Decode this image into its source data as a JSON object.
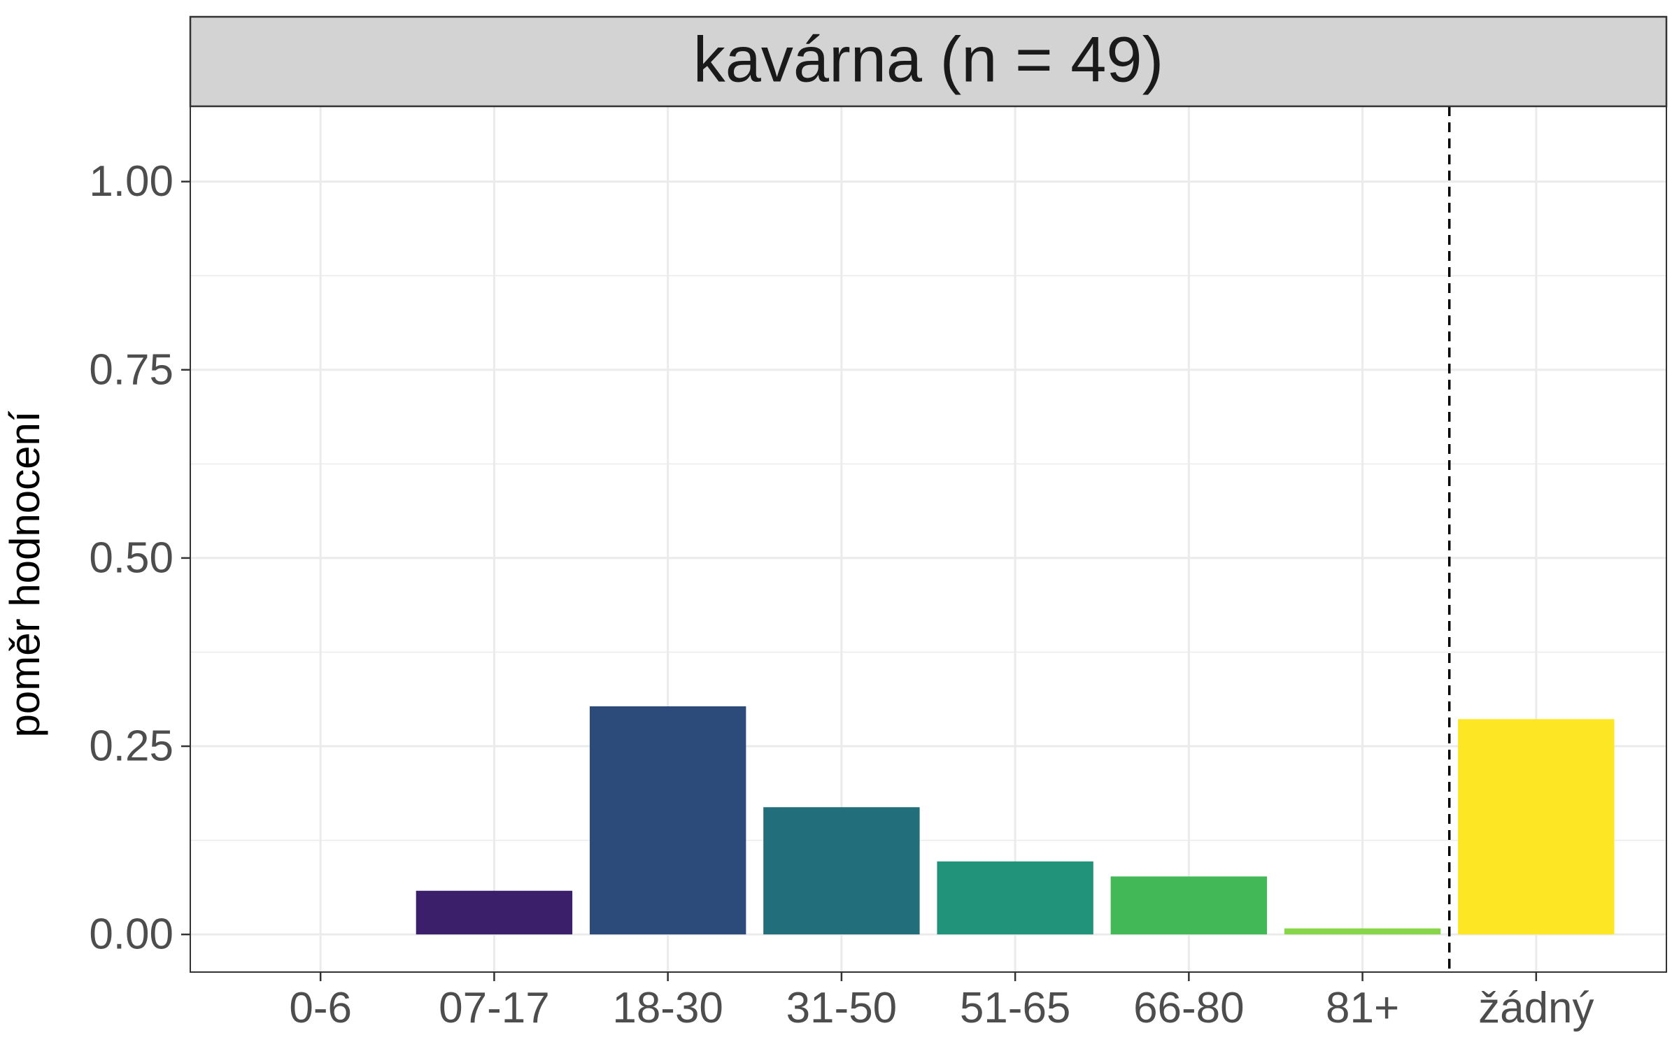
{
  "chart_data": {
    "type": "bar",
    "title": "kavárna (n = 49)",
    "xlabel": "",
    "ylabel": "poměr hodnocení",
    "categories": [
      "0-6",
      "07-17",
      "18-30",
      "31-50",
      "51-65",
      "66-80",
      "81+",
      "žádný"
    ],
    "values": [
      0.0,
      0.058,
      0.303,
      0.169,
      0.097,
      0.077,
      0.008,
      0.286
    ],
    "colors": [
      "#440154",
      "#3b1f6a",
      "#2c4a7a",
      "#226f7b",
      "#21937a",
      "#42b856",
      "#87d549",
      "#fde725"
    ],
    "ylim": [
      -0.05,
      1.1
    ],
    "yticks": [
      0.0,
      0.25,
      0.5,
      0.75,
      1.0
    ],
    "ytick_labels": [
      "0.00",
      "0.25",
      "0.50",
      "0.75",
      "1.00"
    ],
    "grid": true,
    "separator_after_category": "81+",
    "legend": "none"
  }
}
